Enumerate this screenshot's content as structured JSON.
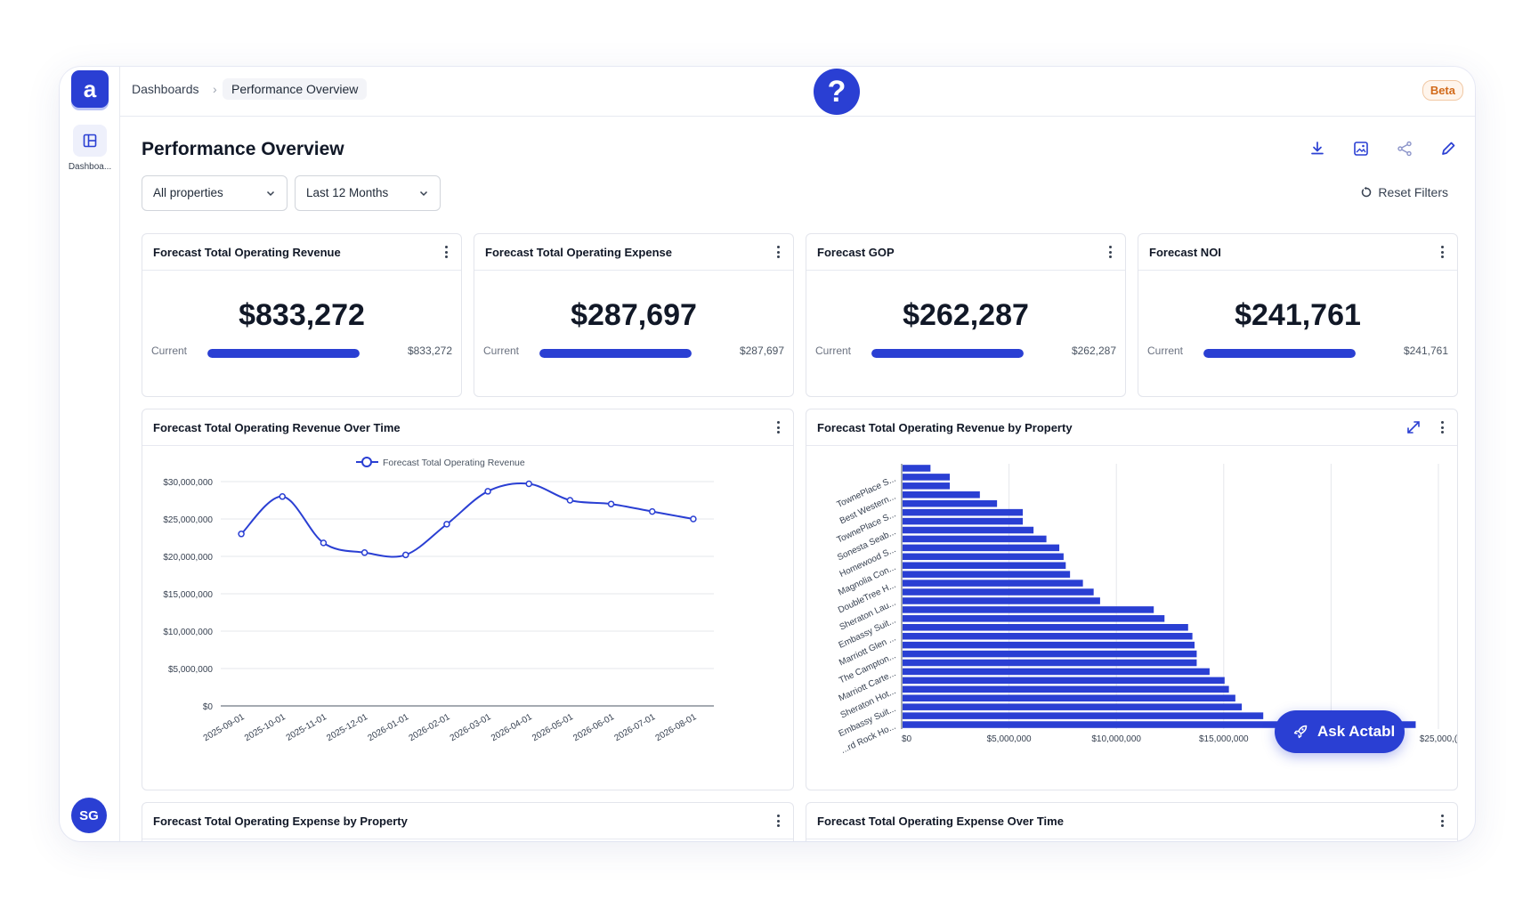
{
  "app": {
    "logo_letter": "a",
    "sidebar_item": "Dashboa...",
    "user_initials": "SG",
    "beta_label": "Beta",
    "help_glyph": "?"
  },
  "breadcrumb": {
    "root": "Dashboards",
    "separator": "›",
    "current": "Performance Overview"
  },
  "page": {
    "title": "Performance Overview"
  },
  "toolbar": {
    "icons": [
      "download-icon",
      "image-icon",
      "share-icon",
      "edit-icon"
    ]
  },
  "filters": {
    "property": "All properties",
    "period": "Last 12 Months",
    "reset_label": "Reset Filters"
  },
  "kpis": [
    {
      "title": "Forecast Total Operating Revenue",
      "value": "$833,272",
      "current_label": "Current",
      "current_value": "$833,272",
      "progress": 1.0
    },
    {
      "title": "Forecast Total Operating Expense",
      "value": "$287,697",
      "current_label": "Current",
      "current_value": "$287,697",
      "progress": 1.0
    },
    {
      "title": "Forecast GOP",
      "value": "$262,287",
      "current_label": "Current",
      "current_value": "$262,287",
      "progress": 1.0
    },
    {
      "title": "Forecast NOI",
      "value": "$241,761",
      "current_label": "Current",
      "current_value": "$241,761",
      "progress": 1.0
    }
  ],
  "panels": {
    "revenue_over_time": "Forecast Total Operating Revenue Over Time",
    "revenue_by_property": "Forecast Total Operating Revenue by Property",
    "expense_by_property": "Forecast Total Operating Expense by Property",
    "expense_over_time": "Forecast Total Operating Expense Over Time"
  },
  "ask_button": {
    "label": "Ask Actabl"
  },
  "colors": {
    "accent": "#2a3fd3",
    "beta": "#d26a1a"
  },
  "chart_data": [
    {
      "type": "line",
      "title": "Forecast Total Operating Revenue Over Time",
      "legend": "top",
      "grid": true,
      "x": [
        "2025-09-01",
        "2025-10-01",
        "2025-11-01",
        "2025-12-01",
        "2026-01-01",
        "2026-02-01",
        "2026-03-01",
        "2026-04-01",
        "2026-05-01",
        "2026-06-01",
        "2026-07-01",
        "2026-08-01"
      ],
      "series": [
        {
          "name": "Forecast Total Operating Revenue",
          "values": [
            23000000,
            28000000,
            21800000,
            20500000,
            20200000,
            24300000,
            28700000,
            29700000,
            27500000,
            27000000,
            26000000,
            25000000
          ]
        }
      ],
      "ylim": [
        0,
        30000000
      ],
      "yticks": [
        "$0",
        "$5,000,000",
        "$10,000,000",
        "$15,000,000",
        "$20,000,000",
        "$25,000,000",
        "$30,000,000"
      ]
    },
    {
      "type": "bar",
      "orientation": "horizontal",
      "title": "Forecast Total Operating Revenue by Property",
      "grid": true,
      "category_labels": [
        "TownePlace S...",
        "Best Western...",
        "TownePlace S...",
        "Sonesta Seab...",
        "Homewood S...",
        "Magnolia Con...",
        "DoubleTree H...",
        "Sheraton Lau...",
        "Embassy Suit...",
        "Marriott Glen ...",
        "The Campton...",
        "Marriott Carte...",
        "Sheraton Hot...",
        "Embassy Suit...",
        "...rd Rock Ho..."
      ],
      "values": [
        1300000,
        2200000,
        2200000,
        3600000,
        4400000,
        5600000,
        5600000,
        6100000,
        6700000,
        7300000,
        7500000,
        7600000,
        7800000,
        8400000,
        8900000,
        9200000,
        11700000,
        12200000,
        13300000,
        13500000,
        13600000,
        13700000,
        13700000,
        14300000,
        15000000,
        15200000,
        15500000,
        15800000,
        16800000,
        23900000
      ],
      "xlim": [
        0,
        25000000
      ],
      "xticks": [
        "$0",
        "$5,000,000",
        "$10,000,000",
        "$15,000,000",
        "$20,000,000",
        "$25,000,("
      ]
    }
  ]
}
